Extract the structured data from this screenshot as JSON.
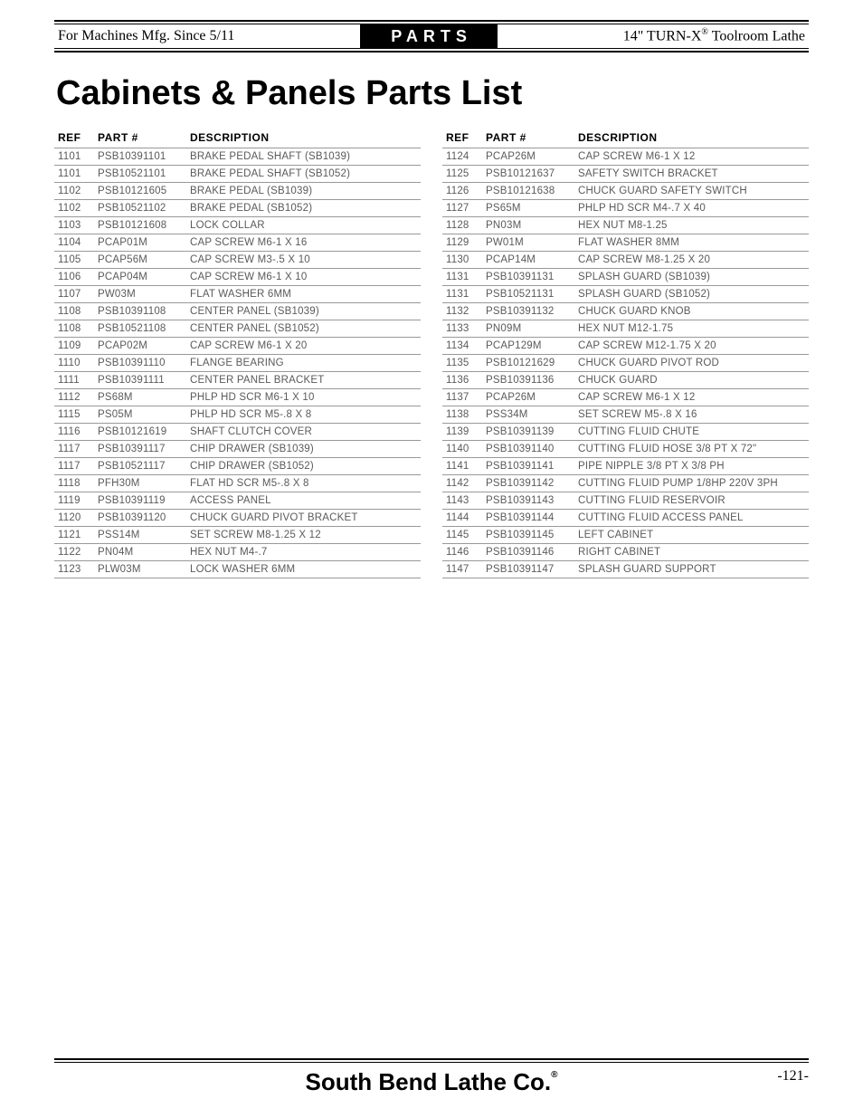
{
  "header": {
    "left": "For Machines Mfg. Since 5/11",
    "center": "PARTS",
    "right_prefix": "14\" TURN-X",
    "right_suffix": " Toolroom Lathe",
    "reg": "®"
  },
  "title": "Cabinets & Panels Parts List",
  "columns": {
    "ref": "REF",
    "part": "PART #",
    "desc": "DESCRIPTION"
  },
  "left_rows": [
    {
      "ref": "1101",
      "part": "PSB10391101",
      "desc": "BRAKE PEDAL SHAFT (SB1039)"
    },
    {
      "ref": "1101",
      "part": "PSB10521101",
      "desc": "BRAKE PEDAL SHAFT (SB1052)"
    },
    {
      "ref": "1102",
      "part": "PSB10121605",
      "desc": "BRAKE PEDAL (SB1039)"
    },
    {
      "ref": "1102",
      "part": "PSB10521102",
      "desc": "BRAKE PEDAL (SB1052)"
    },
    {
      "ref": "1103",
      "part": "PSB10121608",
      "desc": "LOCK COLLAR"
    },
    {
      "ref": "1104",
      "part": "PCAP01M",
      "desc": "CAP SCREW M6-1 X 16"
    },
    {
      "ref": "1105",
      "part": "PCAP56M",
      "desc": "CAP SCREW M3-.5 X 10"
    },
    {
      "ref": "1106",
      "part": "PCAP04M",
      "desc": "CAP SCREW M6-1 X 10"
    },
    {
      "ref": "1107",
      "part": "PW03M",
      "desc": "FLAT WASHER 6MM"
    },
    {
      "ref": "1108",
      "part": "PSB10391108",
      "desc": "CENTER PANEL (SB1039)"
    },
    {
      "ref": "1108",
      "part": "PSB10521108",
      "desc": "CENTER PANEL (SB1052)"
    },
    {
      "ref": "1109",
      "part": "PCAP02M",
      "desc": "CAP SCREW M6-1 X 20"
    },
    {
      "ref": "1110",
      "part": "PSB10391110",
      "desc": "FLANGE BEARING"
    },
    {
      "ref": "1111",
      "part": "PSB10391111",
      "desc": "CENTER PANEL BRACKET"
    },
    {
      "ref": "1112",
      "part": "PS68M",
      "desc": "PHLP HD SCR M6-1 X 10"
    },
    {
      "ref": "1115",
      "part": "PS05M",
      "desc": "PHLP HD SCR M5-.8 X 8"
    },
    {
      "ref": "1116",
      "part": "PSB10121619",
      "desc": "SHAFT CLUTCH COVER"
    },
    {
      "ref": "1117",
      "part": "PSB10391117",
      "desc": "CHIP DRAWER (SB1039)"
    },
    {
      "ref": "1117",
      "part": "PSB10521117",
      "desc": "CHIP DRAWER (SB1052)"
    },
    {
      "ref": "1118",
      "part": "PFH30M",
      "desc": "FLAT HD SCR M5-.8 X 8"
    },
    {
      "ref": "1119",
      "part": "PSB10391119",
      "desc": "ACCESS PANEL"
    },
    {
      "ref": "1120",
      "part": "PSB10391120",
      "desc": "CHUCK GUARD PIVOT BRACKET"
    },
    {
      "ref": "1121",
      "part": "PSS14M",
      "desc": "SET SCREW M8-1.25 X 12"
    },
    {
      "ref": "1122",
      "part": "PN04M",
      "desc": "HEX NUT M4-.7"
    },
    {
      "ref": "1123",
      "part": "PLW03M",
      "desc": "LOCK WASHER 6MM"
    }
  ],
  "right_rows": [
    {
      "ref": "1124",
      "part": "PCAP26M",
      "desc": "CAP SCREW M6-1 X 12"
    },
    {
      "ref": "1125",
      "part": "PSB10121637",
      "desc": "SAFETY SWITCH BRACKET"
    },
    {
      "ref": "1126",
      "part": "PSB10121638",
      "desc": "CHUCK GUARD SAFETY SWITCH"
    },
    {
      "ref": "1127",
      "part": "PS65M",
      "desc": "PHLP HD SCR M4-.7 X 40"
    },
    {
      "ref": "1128",
      "part": "PN03M",
      "desc": "HEX NUT M8-1.25"
    },
    {
      "ref": "1129",
      "part": "PW01M",
      "desc": "FLAT WASHER 8MM"
    },
    {
      "ref": "1130",
      "part": "PCAP14M",
      "desc": "CAP SCREW M8-1.25 X 20"
    },
    {
      "ref": "1131",
      "part": "PSB10391131",
      "desc": "SPLASH GUARD (SB1039)"
    },
    {
      "ref": "1131",
      "part": "PSB10521131",
      "desc": "SPLASH GUARD (SB1052)"
    },
    {
      "ref": "1132",
      "part": "PSB10391132",
      "desc": "CHUCK GUARD KNOB"
    },
    {
      "ref": "1133",
      "part": "PN09M",
      "desc": "HEX NUT M12-1.75"
    },
    {
      "ref": "1134",
      "part": "PCAP129M",
      "desc": "CAP SCREW M12-1.75 X 20"
    },
    {
      "ref": "1135",
      "part": "PSB10121629",
      "desc": "CHUCK GUARD PIVOT ROD"
    },
    {
      "ref": "1136",
      "part": "PSB10391136",
      "desc": "CHUCK GUARD"
    },
    {
      "ref": "1137",
      "part": "PCAP26M",
      "desc": "CAP SCREW M6-1 X 12"
    },
    {
      "ref": "1138",
      "part": "PSS34M",
      "desc": "SET SCREW M5-.8 X 16"
    },
    {
      "ref": "1139",
      "part": "PSB10391139",
      "desc": "CUTTING FLUID CHUTE"
    },
    {
      "ref": "1140",
      "part": "PSB10391140",
      "desc": "CUTTING FLUID HOSE 3/8 PT X 72\""
    },
    {
      "ref": "1141",
      "part": "PSB10391141",
      "desc": "PIPE NIPPLE 3/8 PT X 3/8 PH"
    },
    {
      "ref": "1142",
      "part": "PSB10391142",
      "desc": "CUTTING FLUID PUMP 1/8HP 220V 3PH"
    },
    {
      "ref": "1143",
      "part": "PSB10391143",
      "desc": "CUTTING FLUID RESERVOIR"
    },
    {
      "ref": "1144",
      "part": "PSB10391144",
      "desc": "CUTTING FLUID ACCESS PANEL"
    },
    {
      "ref": "1145",
      "part": "PSB10391145",
      "desc": "LEFT CABINET"
    },
    {
      "ref": "1146",
      "part": "PSB10391146",
      "desc": "RIGHT CABINET"
    },
    {
      "ref": "1147",
      "part": "PSB10391147",
      "desc": "SPLASH GUARD SUPPORT"
    }
  ],
  "footer": {
    "company": "South Bend Lathe Co.",
    "reg": "®",
    "page": "-121-"
  }
}
